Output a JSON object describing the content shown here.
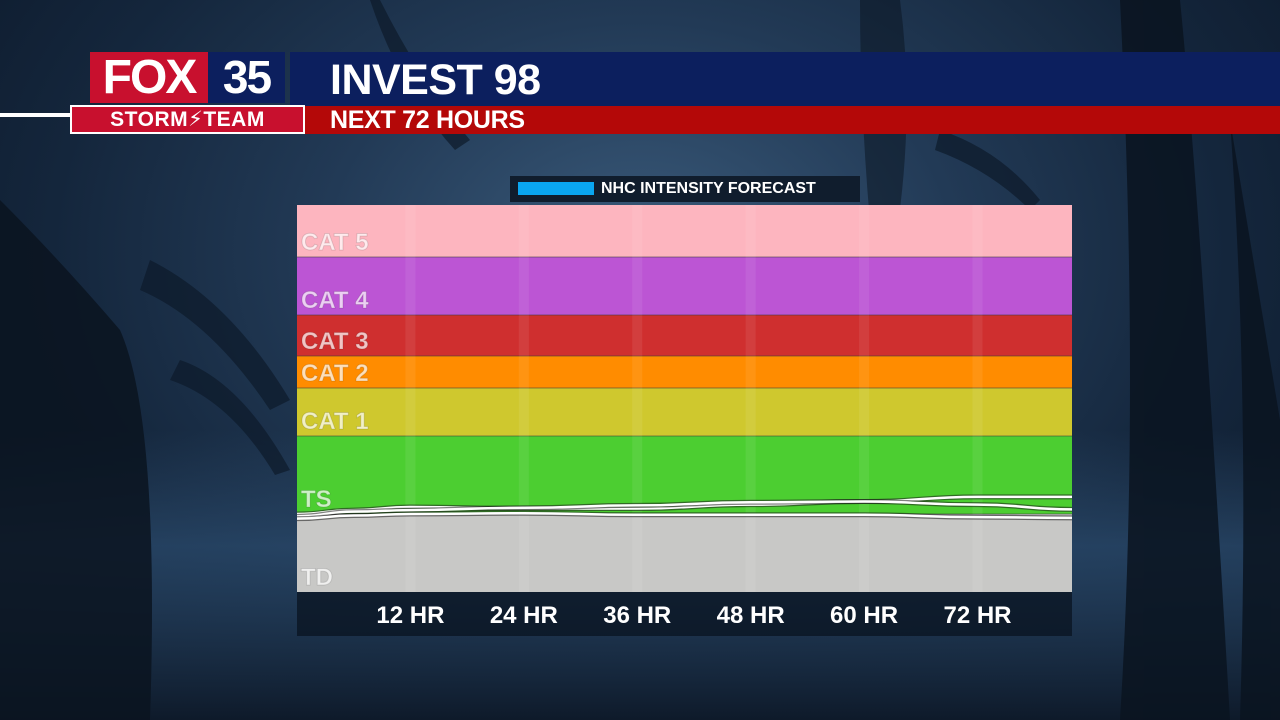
{
  "header": {
    "title": "INVEST 98",
    "subtitle": "NEXT 72 HOURS"
  },
  "logo": {
    "brand": "FOX",
    "channel": "35",
    "team": "STORM⚡TEAM"
  },
  "colors": {
    "header_top": "#0c1f5e",
    "header_bottom": "#b40808",
    "logo_red": "#c8102e",
    "forecast_line": "#0aa6f0"
  },
  "chart_data": {
    "type": "line",
    "title": "",
    "xlabel": "",
    "ylabel": "",
    "legend": {
      "position": "top-center",
      "entries": [
        {
          "label": "NHC INTENSITY FORECAST",
          "color": "#0aa6f0"
        }
      ]
    },
    "x_categories": [
      "12 HR",
      "24 HR",
      "36 HR",
      "48 HR",
      "60 HR",
      "72 HR"
    ],
    "x_range": [
      0,
      82
    ],
    "bands": [
      {
        "label": "TD",
        "y_min": 0,
        "y_max": 1,
        "color": "#c8c8c6"
      },
      {
        "label": "TS",
        "y_min": 1,
        "y_max": 2,
        "color": "#4cce31"
      },
      {
        "label": "CAT 1",
        "y_min": 2,
        "y_max": 3,
        "color": "#cfc82e"
      },
      {
        "label": "CAT 2",
        "y_min": 3,
        "y_max": 4,
        "color": "#ff8c00"
      },
      {
        "label": "CAT 3",
        "y_min": 4,
        "y_max": 5,
        "color": "#cf2f2f"
      },
      {
        "label": "CAT 4",
        "y_min": 5,
        "y_max": 6,
        "color": "#bc55d4"
      },
      {
        "label": "CAT 5",
        "y_min": 6,
        "y_max": 7,
        "color": "#fdb5bf"
      }
    ],
    "grid": true,
    "series": [
      {
        "x": [
          0,
          6,
          12,
          24,
          36,
          48,
          60,
          72,
          82
        ],
        "y": [
          1.0,
          1.05,
          1.09,
          1.07,
          1.07,
          1.12,
          1.16,
          1.22,
          1.22
        ]
      },
      {
        "x": [
          0,
          6,
          12,
          24,
          36,
          48,
          60,
          72,
          82
        ],
        "y": [
          0.97,
          1.03,
          1.05,
          1.08,
          1.11,
          1.15,
          1.16,
          1.12,
          1.06
        ]
      },
      {
        "x": [
          0,
          6,
          12,
          24,
          36,
          48,
          60,
          72,
          82
        ],
        "y": [
          0.94,
          0.98,
          1.0,
          1.01,
          0.99,
          0.99,
          0.99,
          0.96,
          0.95
        ]
      }
    ]
  }
}
